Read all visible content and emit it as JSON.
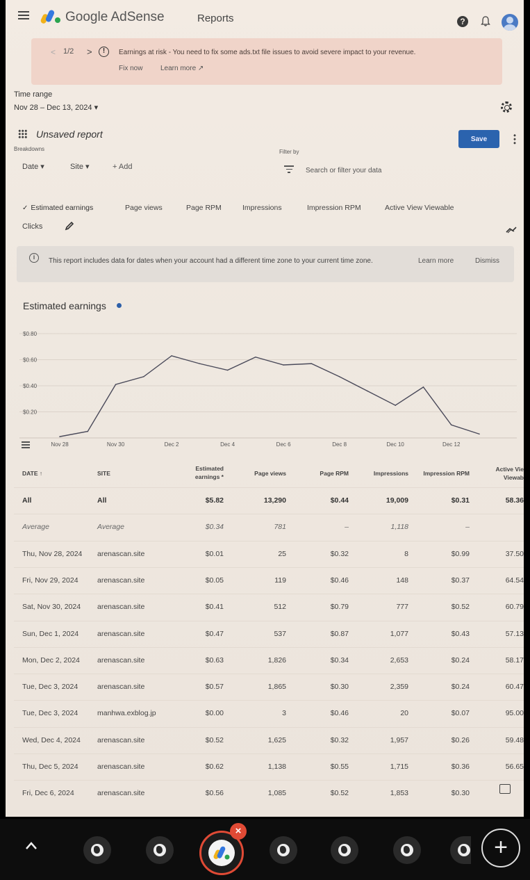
{
  "header": {
    "brand": "Google AdSense",
    "page_title": "Reports",
    "help_glyph": "?"
  },
  "alert": {
    "pager_prev": "<",
    "pager_count": "1/2",
    "pager_next": ">",
    "text": "Earnings at risk - You need to fix some ads.txt file issues to avoid severe impact to your revenue.",
    "fix_now": "Fix now",
    "learn_more": "Learn more ↗"
  },
  "time_range": {
    "label": "Time range",
    "value": "Nov 28 – Dec 13, 2024 ▾"
  },
  "report": {
    "name": "Unsaved report",
    "breakdowns_label": "Breakdowns",
    "filter_by_label": "Filter by",
    "save_label": "Save",
    "chip_date": "Date ▾",
    "chip_site": "Site ▾",
    "add_label": "+  Add",
    "search_placeholder": "Search or filter your data"
  },
  "metrics": {
    "check_glyph": "✓",
    "items": [
      "Estimated earnings",
      "Page views",
      "Page RPM",
      "Impressions",
      "Impression RPM",
      "Active View Viewable"
    ],
    "clicks": "Clicks"
  },
  "info": {
    "glyph": "i",
    "text": "This report includes data for dates when your account had a different time zone to your current time zone.",
    "learn_more": "Learn more",
    "dismiss": "Dismiss"
  },
  "chart_data": {
    "type": "line",
    "title": "Estimated earnings",
    "yticks": [
      "$0.80",
      "$0.60",
      "$0.40",
      "$0.20"
    ],
    "ylim": [
      0,
      0.8
    ],
    "xticks": [
      "Nov 28",
      "Nov 30",
      "Dec 2",
      "Dec 4",
      "Dec 6",
      "Dec 8",
      "Dec 10",
      "Dec 12"
    ],
    "x": [
      "Nov 28",
      "Nov 29",
      "Nov 30",
      "Dec 1",
      "Dec 2",
      "Dec 3",
      "Dec 4",
      "Dec 5",
      "Dec 6",
      "Dec 7",
      "Dec 8",
      "Dec 9",
      "Dec 10",
      "Dec 11",
      "Dec 12",
      "Dec 13"
    ],
    "series": [
      {
        "values": [
          0.01,
          0.05,
          0.41,
          0.47,
          0.63,
          0.57,
          0.52,
          0.62,
          0.56,
          0.57,
          0.47,
          0.36,
          0.25,
          0.39,
          0.1,
          0.03
        ],
        "color": "#4a4a5a"
      }
    ],
    "grid": true
  },
  "table": {
    "headers": {
      "date": "DATE ↑",
      "site": "SITE",
      "earnings_l1": "Estimated",
      "earnings_l2": "earnings *",
      "page_views": "Page views",
      "page_rpm": "Page RPM",
      "impressions": "Impressions",
      "impression_rpm": "Impression RPM",
      "active_l1": "Active Vie",
      "active_l2": "Viewab"
    },
    "rows": [
      {
        "date": "All",
        "site": "All",
        "earnings": "$5.82",
        "page_views": "13,290",
        "page_rpm": "$0.44",
        "impressions": "19,009",
        "impression_rpm": "$0.31",
        "active_view": "58.36"
      },
      {
        "date": "Average",
        "site": "Average",
        "earnings": "$0.34",
        "page_views": "781",
        "page_rpm": "–",
        "impressions": "1,118",
        "impression_rpm": "–",
        "active_view": ""
      },
      {
        "date": "Thu, Nov 28, 2024",
        "site": "arenascan.site",
        "earnings": "$0.01",
        "page_views": "25",
        "page_rpm": "$0.32",
        "impressions": "8",
        "impression_rpm": "$0.99",
        "active_view": "37.50"
      },
      {
        "date": "Fri, Nov 29, 2024",
        "site": "arenascan.site",
        "earnings": "$0.05",
        "page_views": "119",
        "page_rpm": "$0.46",
        "impressions": "148",
        "impression_rpm": "$0.37",
        "active_view": "64.54"
      },
      {
        "date": "Sat, Nov 30, 2024",
        "site": "arenascan.site",
        "earnings": "$0.41",
        "page_views": "512",
        "page_rpm": "$0.79",
        "impressions": "777",
        "impression_rpm": "$0.52",
        "active_view": "60.79"
      },
      {
        "date": "Sun, Dec 1, 2024",
        "site": "arenascan.site",
        "earnings": "$0.47",
        "page_views": "537",
        "page_rpm": "$0.87",
        "impressions": "1,077",
        "impression_rpm": "$0.43",
        "active_view": "57.13"
      },
      {
        "date": "Mon, Dec 2, 2024",
        "site": "arenascan.site",
        "earnings": "$0.63",
        "page_views": "1,826",
        "page_rpm": "$0.34",
        "impressions": "2,653",
        "impression_rpm": "$0.24",
        "active_view": "58.17"
      },
      {
        "date": "Tue, Dec 3, 2024",
        "site": "arenascan.site",
        "earnings": "$0.57",
        "page_views": "1,865",
        "page_rpm": "$0.30",
        "impressions": "2,359",
        "impression_rpm": "$0.24",
        "active_view": "60.47"
      },
      {
        "date": "Tue, Dec 3, 2024",
        "site": "manhwa.exblog.jp",
        "earnings": "$0.00",
        "page_views": "3",
        "page_rpm": "$0.46",
        "impressions": "20",
        "impression_rpm": "$0.07",
        "active_view": "95.00"
      },
      {
        "date": "Wed, Dec 4, 2024",
        "site": "arenascan.site",
        "earnings": "$0.52",
        "page_views": "1,625",
        "page_rpm": "$0.32",
        "impressions": "1,957",
        "impression_rpm": "$0.26",
        "active_view": "59.48"
      },
      {
        "date": "Thu, Dec 5, 2024",
        "site": "arenascan.site",
        "earnings": "$0.62",
        "page_views": "1,138",
        "page_rpm": "$0.55",
        "impressions": "1,715",
        "impression_rpm": "$0.36",
        "active_view": "56.65"
      },
      {
        "date": "Fri, Dec 6, 2024",
        "site": "arenascan.site",
        "earnings": "$0.56",
        "page_views": "1,085",
        "page_rpm": "$0.52",
        "impressions": "1,853",
        "impression_rpm": "$0.30",
        "active_view": ""
      }
    ]
  },
  "dock": {
    "close_glyph": "×",
    "plus_glyph": "+"
  },
  "colors": {
    "accent": "#2b63ae",
    "alert_bg": "#f0d4c9",
    "legend_dot": "#2d5fa8",
    "dock_active_ring": "#e04a35"
  }
}
